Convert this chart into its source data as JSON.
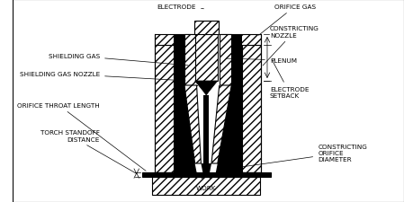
{
  "bg_color": "#ffffff",
  "black_fill": "#000000",
  "white_fill": "#ffffff",
  "line_color": "#000000",
  "labels": {
    "electrode": "ELECTRODE",
    "orifice_gas": "ORIFICE GAS",
    "constricting_nozzle": "CONSTRICTING\nNOZZLE",
    "plenum": "PLENUM",
    "shielding_gas": "SHIELDING GAS",
    "shielding_gas_nozzle": "SHIELDING GAS NOZZLE",
    "orifice_throat_length": "ORIFICE THROAT LENGTH",
    "torch_standoff": "TORCH STANDOFF\nDISTANCE",
    "electrode_setback": "ELECTRODE\nSETBACK",
    "constricting_orifice_diameter": "CONSTRICTING\nORIFICE\nDIAMETER",
    "work": "WORK"
  },
  "figsize": [
    4.49,
    2.26
  ],
  "dpi": 100
}
